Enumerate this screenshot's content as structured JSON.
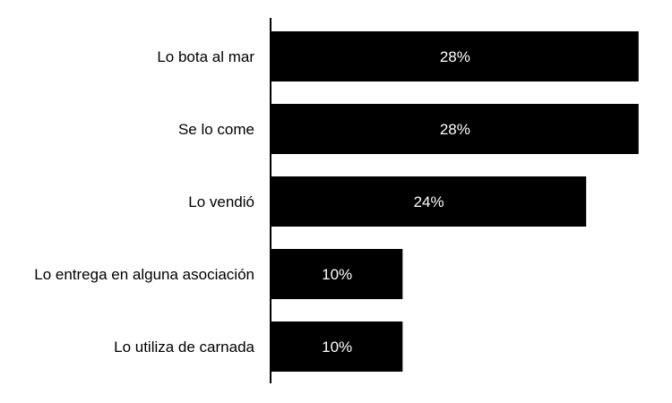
{
  "chart_data": {
    "type": "bar",
    "orientation": "horizontal",
    "categories": [
      "Lo bota al mar",
      "Se lo come",
      "Lo vendió",
      "Lo entrega en alguna asociación",
      "Lo utiliza de carnada"
    ],
    "values": [
      28,
      28,
      24,
      10,
      10
    ],
    "data_labels": [
      "28%",
      "28%",
      "24%",
      "10%",
      "10%"
    ],
    "unit": "%",
    "xlim": [
      0,
      30
    ],
    "title": "",
    "xlabel": "",
    "ylabel": "",
    "grid": false,
    "legend": "none",
    "colors": {
      "bar": "#000000",
      "data_label": "#ffffff",
      "category_label": "#000000",
      "axis": "#000000",
      "background": "#ffffff"
    }
  }
}
